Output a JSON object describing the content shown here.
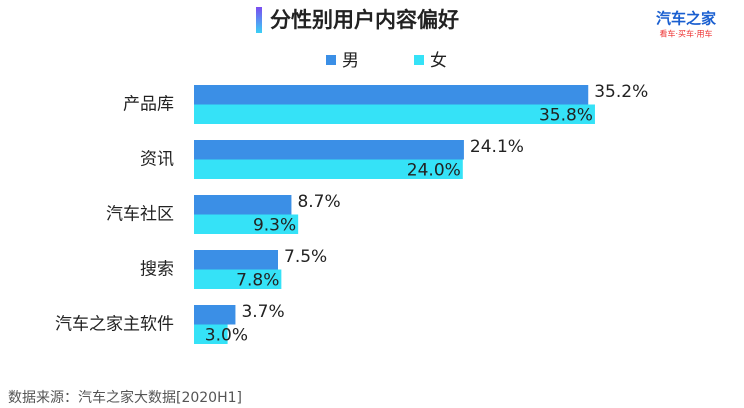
{
  "chart_data": {
    "type": "hbar-grouped",
    "title": "分性别用户内容偏好",
    "logo": {
      "name": "汽车之家",
      "slogan": "看车·买车·用车"
    },
    "source": "数据来源：汽车之家大数据[2020H1]",
    "categories": [
      "产品库",
      "资讯",
      "汽车社区",
      "搜索",
      "汽车之家主软件"
    ],
    "series": [
      {
        "name": "男",
        "color": "#3b8fe6",
        "values": [
          35.2,
          24.1,
          8.7,
          7.5,
          3.7
        ],
        "value_labels": [
          "35.2%",
          "24.1%",
          "8.7%",
          "7.5%",
          "3.7%"
        ]
      },
      {
        "name": "女",
        "color": "#35e2f7",
        "values": [
          35.8,
          24.0,
          9.3,
          7.8,
          3.0
        ],
        "value_labels": [
          "35.8%",
          "24.0%",
          "9.3%",
          "7.8%",
          "3.0%"
        ]
      }
    ]
  }
}
